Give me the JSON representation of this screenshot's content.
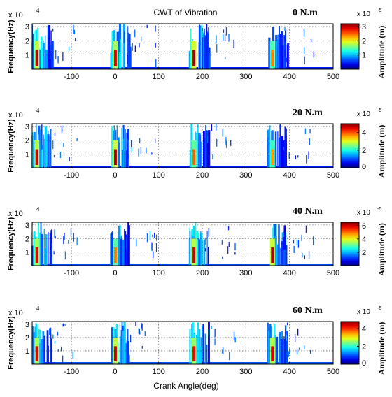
{
  "chart_data": [
    {
      "type": "heatmap",
      "title": "CWT of Vibration",
      "torque_label": "0 N.m",
      "ylabel": "Frequency(Hz)",
      "y_exponent_label": "x 10",
      "y_exponent_power": "4",
      "colorbar_label": "Amplitude (m)",
      "colorbar_exponent_label": "x 10",
      "colorbar_exponent_power": "-5",
      "xlim": [
        -190,
        500
      ],
      "ylim": [
        0,
        32000
      ],
      "x_ticks": [
        -100,
        0,
        100,
        200,
        300,
        400,
        500
      ],
      "y_ticks": [
        1,
        2,
        3
      ],
      "grid": true,
      "colorbar_range": [
        0,
        3.2
      ],
      "colorbar_ticks": [
        1,
        2,
        3
      ],
      "burst_centers_deg": [
        -180,
        0,
        180,
        360
      ],
      "burst_peaks": [
        3.0,
        2.9,
        3.1,
        2.4
      ],
      "background_level": 0.15
    },
    {
      "type": "heatmap",
      "title": "",
      "torque_label": "20 N.m",
      "ylabel": "Frequency(Hz)",
      "y_exponent_label": "x 10",
      "y_exponent_power": "4",
      "colorbar_label": "Amplitude (m)",
      "colorbar_exponent_label": "x 10",
      "colorbar_exponent_power": "-5",
      "xlim": [
        -190,
        500
      ],
      "ylim": [
        0,
        32000
      ],
      "x_ticks": [
        -100,
        0,
        100,
        200,
        300,
        400,
        500
      ],
      "y_ticks": [
        1,
        2,
        3
      ],
      "grid": true,
      "colorbar_range": [
        0,
        5
      ],
      "colorbar_ticks": [
        0,
        2,
        4
      ],
      "burst_centers_deg": [
        -180,
        0,
        180,
        360
      ],
      "burst_peaks": [
        4.6,
        4.8,
        3.9,
        3.6
      ],
      "background_level": 0.15
    },
    {
      "type": "heatmap",
      "title": "",
      "torque_label": "40 N.m",
      "ylabel": "Frequency(Hz)",
      "y_exponent_label": "x 10",
      "y_exponent_power": "4",
      "colorbar_label": "Amplitude (m)",
      "colorbar_exponent_label": "x 10",
      "colorbar_exponent_power": "-5",
      "xlim": [
        -190,
        500
      ],
      "ylim": [
        0,
        32000
      ],
      "x_ticks": [
        -100,
        0,
        100,
        200,
        300,
        400,
        500
      ],
      "y_ticks": [
        1,
        2,
        3
      ],
      "grid": true,
      "colorbar_range": [
        0,
        6.5
      ],
      "colorbar_ticks": [
        2,
        4,
        6
      ],
      "burst_centers_deg": [
        -180,
        0,
        180,
        360
      ],
      "burst_peaks": [
        5.8,
        4.9,
        6.0,
        6.2
      ],
      "background_level": 0.2
    },
    {
      "type": "heatmap",
      "title": "",
      "torque_label": "60 N.m",
      "ylabel": "Frequency(Hz)",
      "y_exponent_label": "x 10",
      "y_exponent_power": "4",
      "xlabel": "Crank Angle(deg)",
      "colorbar_label": "Amplitude (m)",
      "colorbar_exponent_label": "x 10",
      "colorbar_exponent_power": "-5",
      "xlim": [
        -190,
        500
      ],
      "ylim": [
        0,
        32000
      ],
      "x_ticks": [
        -100,
        0,
        100,
        200,
        300,
        400,
        500
      ],
      "y_ticks": [
        1,
        2,
        3
      ],
      "grid": true,
      "colorbar_range": [
        0,
        4.8
      ],
      "colorbar_ticks": [
        0,
        2,
        4
      ],
      "burst_centers_deg": [
        -180,
        0,
        180,
        360
      ],
      "burst_peaks": [
        4.3,
        4.5,
        4.2,
        4.4
      ],
      "background_level": 0.2
    }
  ]
}
